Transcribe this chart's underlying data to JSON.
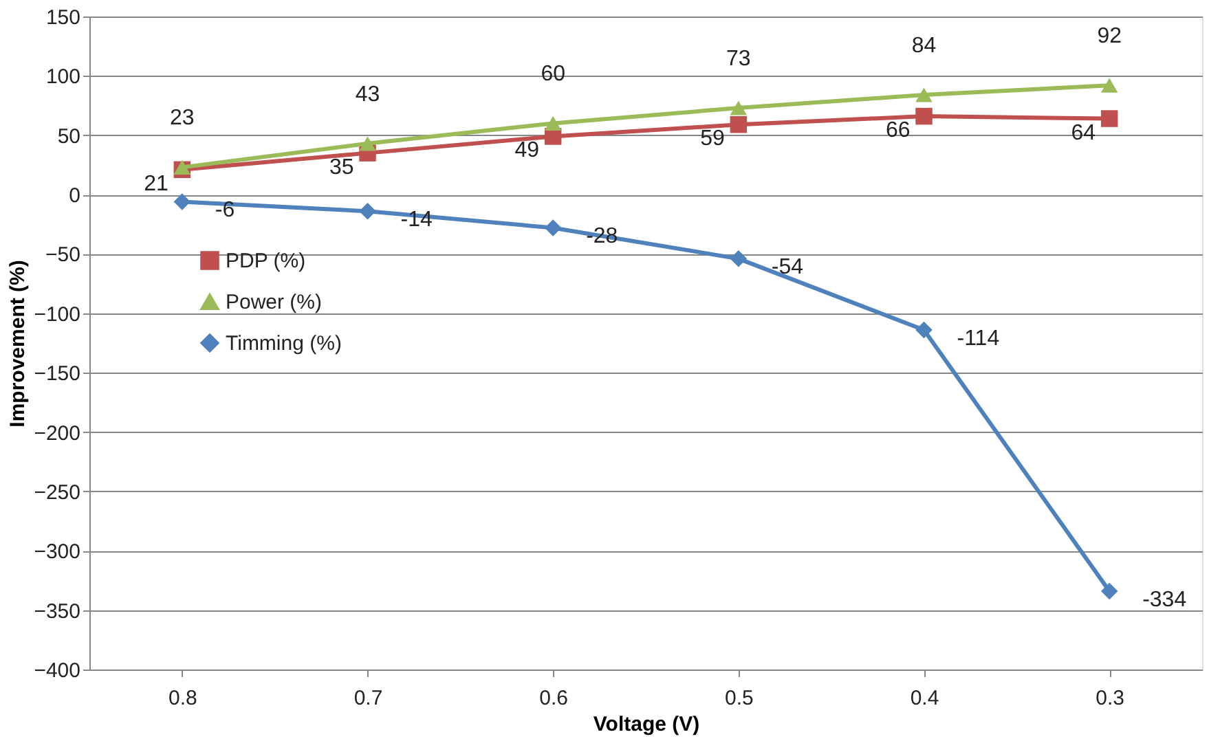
{
  "chart_data": {
    "type": "line",
    "xlabel": "Voltage (V)",
    "ylabel": "Improvement (%)",
    "categories": [
      "0.8",
      "0.7",
      "0.6",
      "0.5",
      "0.4",
      "0.3"
    ],
    "series": [
      {
        "name": "PDP (%)",
        "color": "#c0504d",
        "marker": "square",
        "values": [
          21,
          35,
          49,
          59,
          66,
          64
        ]
      },
      {
        "name": "Power (%)",
        "color": "#9bbb59",
        "marker": "triangle",
        "values": [
          23,
          43,
          60,
          73,
          84,
          92
        ]
      },
      {
        "name": "Timming (%)",
        "color": "#4f81bd",
        "marker": "diamond",
        "values": [
          -6,
          -14,
          -28,
          -54,
          -114,
          -334
        ]
      }
    ],
    "ylim": [
      -400,
      150
    ],
    "yticks": [
      -400,
      -350,
      -300,
      -250,
      -200,
      -150,
      -100,
      -50,
      0,
      50,
      100,
      150
    ],
    "grid": "y",
    "legend": "left",
    "data_labels": true,
    "line_style": "solid"
  }
}
